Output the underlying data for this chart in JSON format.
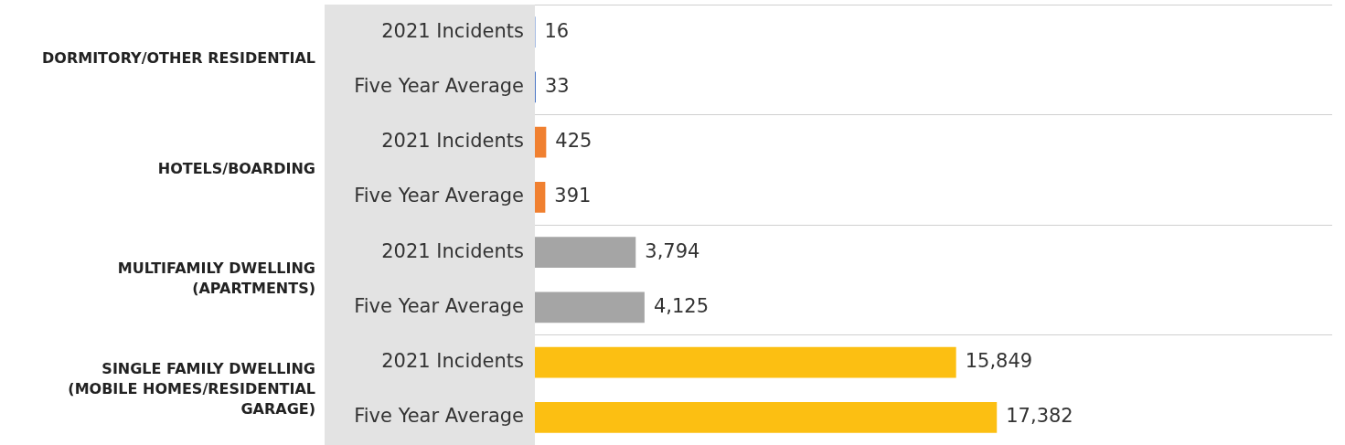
{
  "chart_data": {
    "type": "bar",
    "orientation": "horizontal",
    "categories": [
      "DORMITORY/OTHER RESIDENTIAL",
      "HOTELS/BOARDING",
      "MULTIFAMILY DWELLING (APARTMENTS)",
      "SINGLE FAMILY DWELLING (MOBILE HOMES/RESIDENTIAL GARAGE)"
    ],
    "series": [
      {
        "name": "2021 Incidents",
        "colors": [
          "#4472c4",
          "#f08030",
          "#a5a5a5",
          "#fcbf12"
        ],
        "values": [
          16,
          425,
          3794,
          15849
        ],
        "value_labels": [
          "16",
          "425",
          "3,794",
          "15,849"
        ]
      },
      {
        "name": "Five Year Average",
        "colors": [
          "#4472c4",
          "#f08030",
          "#a5a5a5",
          "#fcbf12"
        ],
        "values": [
          33,
          391,
          4125,
          17382
        ],
        "value_labels": [
          "33",
          "391",
          "4,125",
          "17,382"
        ]
      }
    ],
    "xlim": [
      0,
      30000
    ],
    "grid": "y",
    "legend": false
  }
}
